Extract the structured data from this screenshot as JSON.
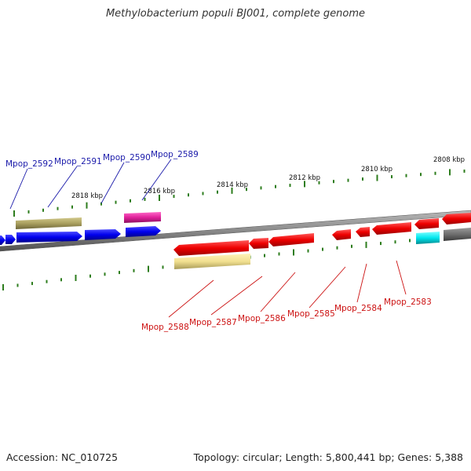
{
  "title": "Methylobacterium populi BJ001, complete genome",
  "footer": {
    "accession": "Accession: NC_010725",
    "summary": "Topology: circular; Length: 5,800,441 bp; Genes: 5,388"
  },
  "colors": {
    "forward_label": "#1a1aaa",
    "reverse_label": "#cc1111",
    "tick": "#2e7d1e",
    "backbone": "#808080"
  },
  "scale_labels": [
    "2818 kbp",
    "2816 kbp",
    "2814 kbp",
    "2812 kbp",
    "2810 kbp",
    "2808 kbp"
  ],
  "forward_genes": [
    "Mpop_2592",
    "Mpop_2591",
    "Mpop_2590",
    "Mpop_2589"
  ],
  "reverse_genes": [
    "Mpop_2588",
    "Mpop_2587",
    "Mpop_2586",
    "Mpop_2585",
    "Mpop_2584",
    "Mpop_2583"
  ]
}
